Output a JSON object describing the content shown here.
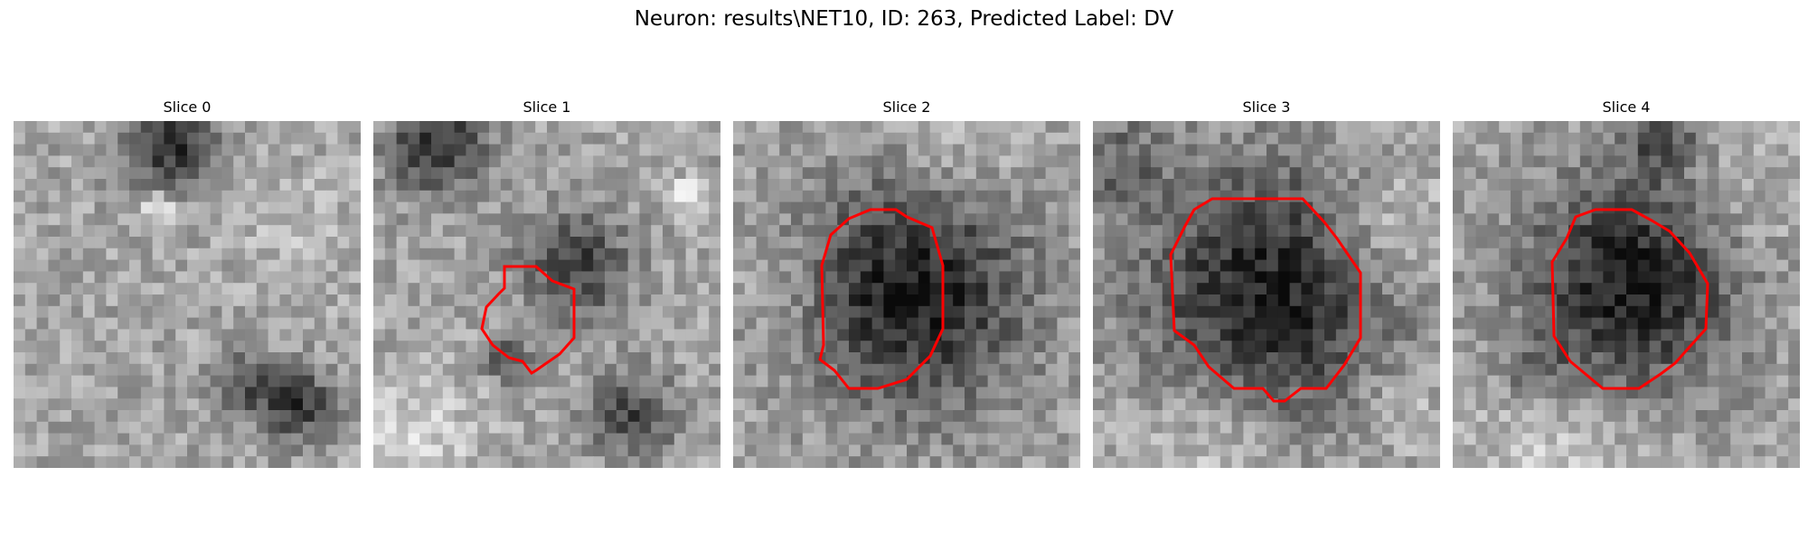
{
  "figure": {
    "title": "Neuron: results\\NET10, ID: 263, Predicted Label: DV"
  },
  "slices": [
    {
      "title": "Slice 0",
      "has_contour": false
    },
    {
      "title": "Slice 1",
      "has_contour": true
    },
    {
      "title": "Slice 2",
      "has_contour": true
    },
    {
      "title": "Slice 3",
      "has_contour": true
    },
    {
      "title": "Slice 4",
      "has_contour": true
    }
  ],
  "colors": {
    "contour": "#ff0000"
  }
}
